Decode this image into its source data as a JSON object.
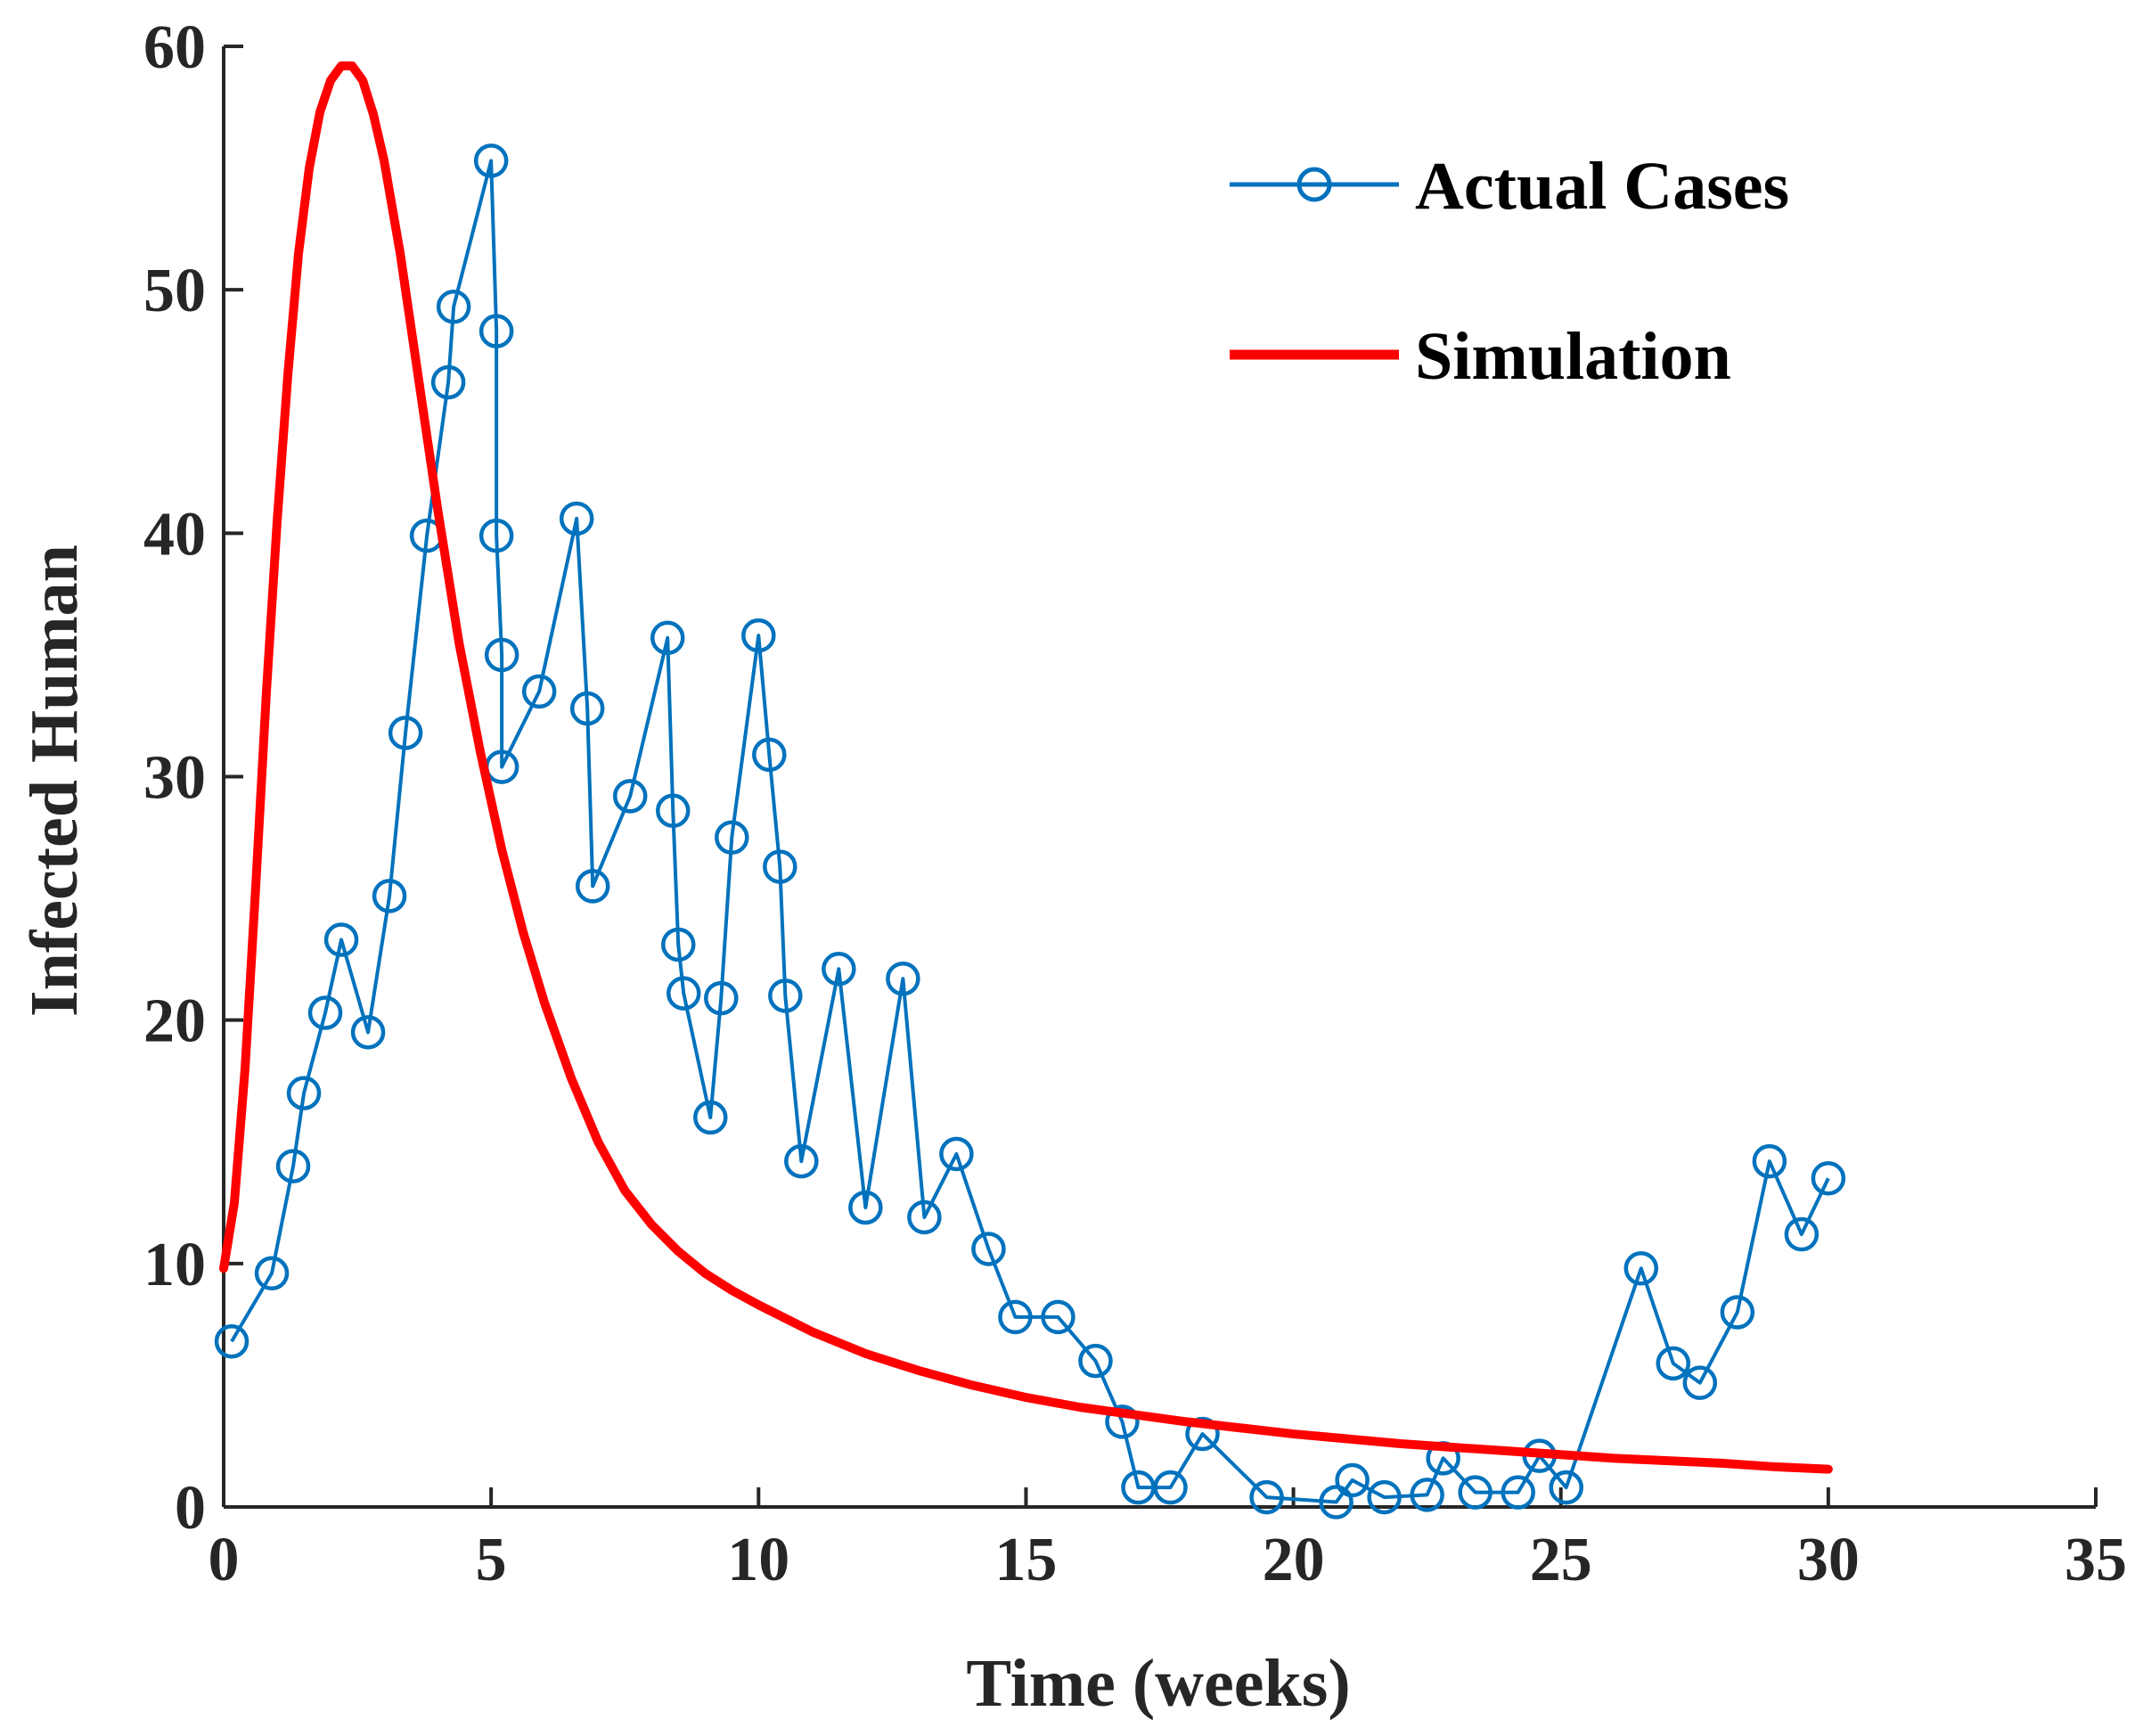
{
  "chart_data": {
    "type": "line",
    "xlabel": "Time (weeks)",
    "ylabel": "Infected Human",
    "xlim": [
      0,
      35
    ],
    "ylim": [
      0,
      60
    ],
    "xticks": [
      0,
      5,
      10,
      15,
      20,
      25,
      30,
      35
    ],
    "yticks": [
      0,
      10,
      20,
      30,
      40,
      50,
      60
    ],
    "grid": false,
    "legend_position": "top-right",
    "series": [
      {
        "name": "Actual Cases",
        "color": "#0072BD",
        "marker": "circle",
        "x": [
          0.15,
          0.9,
          1.3,
          1.5,
          1.9,
          2.2,
          2.7,
          3.1,
          3.4,
          3.8,
          4.2,
          4.3,
          5.0,
          5.1,
          5.1,
          5.2,
          5.2,
          5.9,
          6.6,
          6.8,
          6.9,
          7.6,
          8.3,
          8.4,
          8.5,
          8.6,
          9.1,
          9.3,
          9.5,
          10.0,
          10.2,
          10.4,
          10.5,
          10.8,
          11.5,
          12.0,
          12.7,
          13.1,
          13.7,
          14.3,
          14.8,
          15.6,
          16.3,
          16.8,
          17.1,
          17.7,
          18.3,
          19.5,
          20.8,
          21.1,
          21.7,
          22.5,
          22.8,
          23.4,
          24.2,
          24.6,
          25.1,
          26.5,
          27.1,
          27.6,
          28.3,
          28.9,
          29.5,
          30.0
        ],
        "y": [
          6.8,
          9.6,
          14.0,
          17.0,
          20.3,
          23.3,
          19.5,
          25.1,
          31.8,
          39.9,
          46.2,
          49.3,
          55.3,
          48.3,
          39.9,
          35.0,
          30.4,
          33.5,
          40.6,
          32.8,
          25.5,
          29.2,
          35.7,
          28.6,
          23.1,
          21.1,
          16.0,
          20.9,
          27.5,
          35.8,
          30.9,
          26.3,
          21.0,
          14.2,
          22.1,
          12.3,
          21.7,
          11.9,
          14.5,
          10.6,
          7.8,
          7.8,
          6.0,
          3.5,
          0.8,
          0.8,
          3.0,
          0.4,
          0.2,
          1.1,
          0.4,
          0.5,
          2.0,
          0.6,
          0.6,
          2.1,
          0.8,
          9.8,
          5.9,
          5.1,
          8.0,
          14.2,
          11.2,
          13.5
        ]
      },
      {
        "name": "Simulation",
        "color": "#FF0000",
        "marker": "none",
        "x": [
          0,
          0.2,
          0.4,
          0.6,
          0.8,
          1.0,
          1.2,
          1.4,
          1.6,
          1.8,
          2.0,
          2.2,
          2.4,
          2.6,
          2.8,
          3.0,
          3.3,
          3.6,
          4.0,
          4.4,
          4.8,
          5.2,
          5.6,
          6.0,
          6.5,
          7.0,
          7.5,
          8.0,
          8.5,
          9.0,
          9.5,
          10.0,
          11.0,
          12.0,
          13.0,
          14.0,
          15.0,
          16.0,
          17.0,
          18.0,
          19.0,
          20.0,
          21.0,
          22.0,
          23.0,
          24.0,
          25.0,
          26.0,
          27.0,
          28.0,
          29.0,
          30.0
        ],
        "y": [
          9.8,
          12.5,
          18.0,
          25.5,
          33.5,
          40.5,
          46.5,
          51.5,
          55.0,
          57.3,
          58.6,
          59.2,
          59.2,
          58.6,
          57.2,
          55.3,
          51.5,
          47.0,
          41.0,
          35.5,
          31.0,
          27.0,
          23.6,
          20.7,
          17.6,
          15.0,
          13.0,
          11.6,
          10.5,
          9.6,
          8.9,
          8.3,
          7.2,
          6.3,
          5.6,
          5.0,
          4.5,
          4.1,
          3.8,
          3.5,
          3.25,
          3.0,
          2.8,
          2.6,
          2.45,
          2.3,
          2.15,
          2.0,
          1.9,
          1.8,
          1.65,
          1.55
        ]
      }
    ]
  }
}
